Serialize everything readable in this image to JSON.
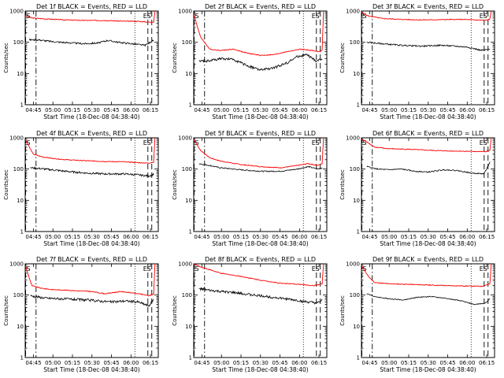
{
  "figure": {
    "panels": [
      {
        "title": "Det 1f BLACK = Events, RED = LLD",
        "ylabel": "Counts/sec",
        "xlabel": "Start Time (18-Dec-08 04:38:40)"
      },
      {
        "title": "Det 2f BLACK = Events, RED = LLD",
        "ylabel": "Counts/sec",
        "xlabel": "Start Time (18-Dec-08 04:38:40)"
      },
      {
        "title": "Det 3f BLACK = Events, RED = LLD",
        "ylabel": "Counts/sec",
        "xlabel": "Start Time (18-Dec-08 04:38:40)"
      },
      {
        "title": "Det 4f BLACK = Events, RED = LLD",
        "ylabel": "Counts/sec",
        "xlabel": "Start Time (18-Dec-08 04:38:40)"
      },
      {
        "title": "Det 5f BLACK = Events, RED = LLD",
        "ylabel": "Counts/sec",
        "xlabel": "Start Time (18-Dec-08 04:38:40)"
      },
      {
        "title": "Det 6f BLACK = Events, RED = LLD",
        "ylabel": "Counts/sec",
        "xlabel": "Start Time (18-Dec-08 04:38:40)"
      },
      {
        "title": "Det 7f BLACK = Events, RED = LLD",
        "ylabel": "Counts/sec",
        "xlabel": "Start Time (18-Dec-08 04:38:40)"
      },
      {
        "title": "Det 8f BLACK = Events, RED = LLD",
        "ylabel": "Counts/sec",
        "xlabel": "Start Time (18-Dec-08 04:38:40)"
      },
      {
        "title": "Det 9f BLACK = Events, RED = LLD",
        "ylabel": "Counts/sec",
        "xlabel": "Start Time (18-Dec-08 04:38:40)"
      }
    ]
  },
  "chart_data": {
    "type": "line",
    "layout": "3x3 grid",
    "yscale": "log",
    "ylim": [
      1,
      1000
    ],
    "yticks": [
      "1",
      "10",
      "100",
      "1000"
    ],
    "xlim": [
      "04:38:40",
      "06:21"
    ],
    "xticks": [
      "04:45",
      "05:00",
      "05:15",
      "05:30",
      "05:45",
      "06:00",
      "06:15"
    ],
    "colors": {
      "events": "#000000",
      "lld": "#ff0000"
    },
    "markers": [
      {
        "label": "S",
        "time": "04:39",
        "style": "dashed"
      },
      {
        "label": "",
        "time": "04:47",
        "style": "dashdot"
      },
      {
        "label": "E",
        "time": "06:13",
        "style": "dashed"
      },
      {
        "label": "S",
        "time": "06:16",
        "style": "dashed"
      }
    ],
    "series": [
      {
        "panel": "Det 1f",
        "lld": {
          "start": 700,
          "knots": [
            [
              0,
              700
            ],
            [
              0.05,
              600
            ],
            [
              0.15,
              560
            ],
            [
              0.3,
              520
            ],
            [
              0.45,
              500
            ],
            [
              0.6,
              500
            ],
            [
              0.75,
              470
            ],
            [
              0.85,
              470
            ],
            [
              0.93,
              440
            ],
            [
              0.97,
              450
            ]
          ],
          "spike": 1000
        },
        "events": {
          "knots": [
            [
              0.03,
              120
            ],
            [
              0.1,
              120
            ],
            [
              0.2,
              105
            ],
            [
              0.35,
              95
            ],
            [
              0.45,
              90
            ],
            [
              0.55,
              95
            ],
            [
              0.62,
              115
            ],
            [
              0.7,
              100
            ],
            [
              0.8,
              90
            ],
            [
              0.9,
              80
            ],
            [
              0.97,
              120
            ]
          ],
          "noise": 0.06
        }
      },
      {
        "panel": "Det 2f",
        "lld": {
          "start": 800,
          "knots": [
            [
              0,
              800
            ],
            [
              0.05,
              150
            ],
            [
              0.12,
              60
            ],
            [
              0.2,
              55
            ],
            [
              0.3,
              60
            ],
            [
              0.4,
              45
            ],
            [
              0.5,
              38
            ],
            [
              0.6,
              40
            ],
            [
              0.7,
              50
            ],
            [
              0.8,
              60
            ],
            [
              0.88,
              55
            ],
            [
              0.95,
              50
            ],
            [
              0.97,
              60
            ]
          ],
          "spike": 1000
        },
        "events": {
          "knots": [
            [
              0.04,
              25
            ],
            [
              0.1,
              25
            ],
            [
              0.2,
              30
            ],
            [
              0.3,
              28
            ],
            [
              0.4,
              18
            ],
            [
              0.5,
              13
            ],
            [
              0.6,
              15
            ],
            [
              0.7,
              22
            ],
            [
              0.78,
              35
            ],
            [
              0.85,
              40
            ],
            [
              0.92,
              25
            ],
            [
              0.97,
              30
            ]
          ],
          "noise": 0.09
        }
      },
      {
        "panel": "Det 3f",
        "lld": {
          "start": 900,
          "knots": [
            [
              0,
              900
            ],
            [
              0.05,
              700
            ],
            [
              0.15,
              580
            ],
            [
              0.3,
              540
            ],
            [
              0.45,
              520
            ],
            [
              0.6,
              530
            ],
            [
              0.75,
              540
            ],
            [
              0.85,
              520
            ],
            [
              0.93,
              500
            ],
            [
              0.97,
              560
            ]
          ],
          "spike": 1000
        },
        "events": {
          "knots": [
            [
              0.04,
              100
            ],
            [
              0.15,
              90
            ],
            [
              0.3,
              80
            ],
            [
              0.45,
              75
            ],
            [
              0.6,
              80
            ],
            [
              0.7,
              75
            ],
            [
              0.8,
              70
            ],
            [
              0.9,
              55
            ],
            [
              0.97,
              60
            ]
          ],
          "noise": 0.05
        }
      },
      {
        "panel": "Det 4f",
        "lld": {
          "start": 900,
          "knots": [
            [
              0,
              900
            ],
            [
              0.06,
              300
            ],
            [
              0.12,
              250
            ],
            [
              0.2,
              220
            ],
            [
              0.3,
              200
            ],
            [
              0.45,
              185
            ],
            [
              0.6,
              175
            ],
            [
              0.75,
              170
            ],
            [
              0.85,
              160
            ],
            [
              0.93,
              155
            ],
            [
              0.97,
              170
            ]
          ],
          "spike": 1000
        },
        "events": {
          "knots": [
            [
              0.04,
              110
            ],
            [
              0.15,
              100
            ],
            [
              0.3,
              85
            ],
            [
              0.45,
              75
            ],
            [
              0.6,
              70
            ],
            [
              0.75,
              70
            ],
            [
              0.85,
              65
            ],
            [
              0.93,
              60
            ],
            [
              0.97,
              70
            ]
          ],
          "noise": 0.07
        }
      },
      {
        "panel": "Det 5f",
        "lld": {
          "start": 900,
          "knots": [
            [
              0,
              900
            ],
            [
              0.05,
              400
            ],
            [
              0.12,
              230
            ],
            [
              0.2,
              180
            ],
            [
              0.35,
              140
            ],
            [
              0.5,
              120
            ],
            [
              0.65,
              110
            ],
            [
              0.78,
              130
            ],
            [
              0.86,
              150
            ],
            [
              0.93,
              130
            ],
            [
              0.97,
              150
            ]
          ],
          "spike": 1000
        },
        "events": {
          "knots": [
            [
              0.04,
              150
            ],
            [
              0.12,
              130
            ],
            [
              0.2,
              110
            ],
            [
              0.35,
              95
            ],
            [
              0.5,
              85
            ],
            [
              0.65,
              85
            ],
            [
              0.78,
              100
            ],
            [
              0.86,
              120
            ],
            [
              0.93,
              100
            ],
            [
              0.97,
              110
            ]
          ],
          "noise": 0.04
        }
      },
      {
        "panel": "Det 6f",
        "lld": {
          "start": 900,
          "knots": [
            [
              0,
              900
            ],
            [
              0.05,
              700
            ],
            [
              0.1,
              500
            ],
            [
              0.2,
              450
            ],
            [
              0.35,
              430
            ],
            [
              0.5,
              400
            ],
            [
              0.65,
              380
            ],
            [
              0.8,
              370
            ],
            [
              0.93,
              360
            ],
            [
              0.97,
              400
            ]
          ],
          "spike": 1000
        },
        "events": {
          "knots": [
            [
              0.04,
              120
            ],
            [
              0.12,
              100
            ],
            [
              0.2,
              95
            ],
            [
              0.3,
              100
            ],
            [
              0.4,
              85
            ],
            [
              0.5,
              80
            ],
            [
              0.62,
              95
            ],
            [
              0.72,
              90
            ],
            [
              0.82,
              75
            ],
            [
              0.92,
              70
            ],
            [
              0.97,
              180
            ]
          ],
          "noise": 0.04
        }
      },
      {
        "panel": "Det 7f",
        "lld": {
          "start": 900,
          "knots": [
            [
              0,
              900
            ],
            [
              0.05,
              200
            ],
            [
              0.12,
              165
            ],
            [
              0.2,
              150
            ],
            [
              0.35,
              140
            ],
            [
              0.5,
              130
            ],
            [
              0.6,
              110
            ],
            [
              0.72,
              130
            ],
            [
              0.85,
              110
            ],
            [
              0.93,
              95
            ],
            [
              0.97,
              110
            ]
          ],
          "spike": 1000
        },
        "events": {
          "knots": [
            [
              0.04,
              95
            ],
            [
              0.15,
              80
            ],
            [
              0.3,
              75
            ],
            [
              0.45,
              70
            ],
            [
              0.55,
              65
            ],
            [
              0.65,
              60
            ],
            [
              0.75,
              65
            ],
            [
              0.85,
              60
            ],
            [
              0.93,
              45
            ],
            [
              0.97,
              80
            ]
          ],
          "noise": 0.09
        }
      },
      {
        "panel": "Det 8f",
        "lld": {
          "start": 1000,
          "knots": [
            [
              0,
              1000
            ],
            [
              0.05,
              800
            ],
            [
              0.12,
              650
            ],
            [
              0.2,
              500
            ],
            [
              0.35,
              400
            ],
            [
              0.5,
              300
            ],
            [
              0.65,
              240
            ],
            [
              0.8,
              220
            ],
            [
              0.9,
              200
            ],
            [
              0.97,
              230
            ]
          ],
          "spike": 1000
        },
        "events": {
          "knots": [
            [
              0.04,
              160
            ],
            [
              0.12,
              140
            ],
            [
              0.2,
              130
            ],
            [
              0.3,
              120
            ],
            [
              0.45,
              100
            ],
            [
              0.6,
              85
            ],
            [
              0.75,
              70
            ],
            [
              0.85,
              60
            ],
            [
              0.93,
              55
            ],
            [
              0.97,
              70
            ]
          ],
          "noise": 0.09
        }
      },
      {
        "panel": "Det 9f",
        "lld": {
          "start": 900,
          "knots": [
            [
              0,
              900
            ],
            [
              0.05,
              400
            ],
            [
              0.1,
              250
            ],
            [
              0.2,
              230
            ],
            [
              0.35,
              220
            ],
            [
              0.5,
              210
            ],
            [
              0.65,
              200
            ],
            [
              0.8,
              195
            ],
            [
              0.9,
              190
            ],
            [
              0.97,
              230
            ]
          ],
          "spike": 1000
        },
        "events": {
          "knots": [
            [
              0.04,
              110
            ],
            [
              0.12,
              85
            ],
            [
              0.22,
              75
            ],
            [
              0.32,
              70
            ],
            [
              0.42,
              85
            ],
            [
              0.52,
              90
            ],
            [
              0.62,
              80
            ],
            [
              0.75,
              65
            ],
            [
              0.85,
              50
            ],
            [
              0.93,
              55
            ],
            [
              0.97,
              80
            ]
          ],
          "noise": 0.03
        }
      }
    ]
  }
}
